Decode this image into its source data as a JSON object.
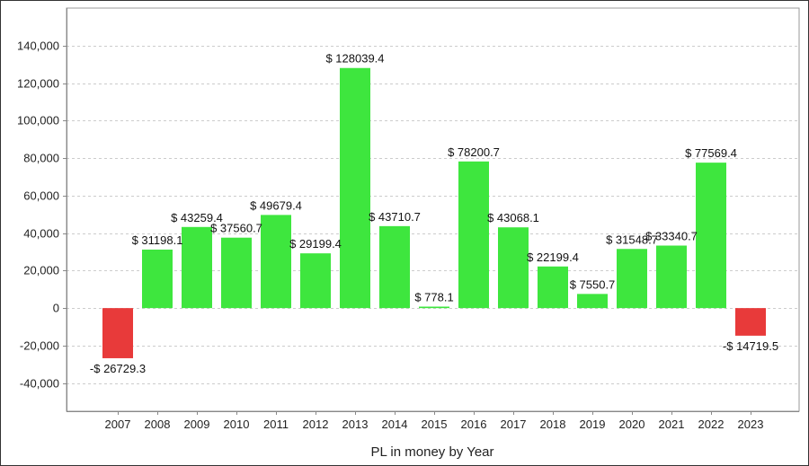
{
  "chart_data": {
    "type": "bar",
    "title": "",
    "xlabel": "PL in money by Year",
    "ylabel": "",
    "ylim": [
      -55000,
      160000
    ],
    "yticks": [
      -40000,
      -20000,
      0,
      20000,
      40000,
      60000,
      80000,
      100000,
      120000,
      140000
    ],
    "ytick_labels": [
      "-40,000",
      "-20,000",
      "0",
      "20,000",
      "40,000",
      "60,000",
      "80,000",
      "100,000",
      "120,000",
      "140,000"
    ],
    "grid": true,
    "categories": [
      "2007",
      "2008",
      "2009",
      "2010",
      "2011",
      "2012",
      "2013",
      "2014",
      "2015",
      "2016",
      "2017",
      "2018",
      "2019",
      "2020",
      "2021",
      "2022",
      "2023"
    ],
    "values": [
      -26729.3,
      31198.1,
      43259.4,
      37560.7,
      49679.4,
      29199.4,
      128039.4,
      43710.7,
      778.1,
      78200.7,
      43068.1,
      22199.4,
      7550.7,
      31548.7,
      33340.7,
      77569.4,
      -14719.5
    ],
    "data_labels": [
      "-$ 26729.3",
      "$ 31198.1",
      "$ 43259.4",
      "$ 37560.7",
      "$ 49679.4",
      "$ 29199.4",
      "$ 128039.4",
      "$ 43710.7",
      "$ 778.1",
      "$ 78200.7",
      "$ 43068.1",
      "$ 22199.4",
      "$ 7550.7",
      "$ 31548.7",
      "$ 33340.7",
      "$ 77569.4",
      "-$ 14719.5"
    ],
    "colors": {
      "positive": "#3ee63e",
      "negative": "#e83a3a",
      "grid": "#cccccc",
      "axis": "#888888",
      "plot_border": "#999999"
    }
  }
}
